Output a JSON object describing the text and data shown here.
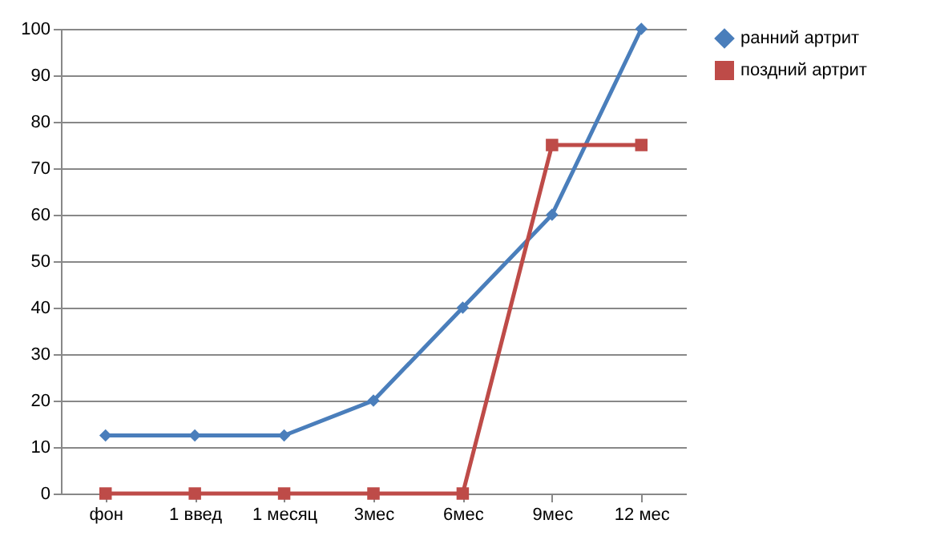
{
  "chart_data": {
    "type": "line",
    "categories": [
      "фон",
      "1 введ",
      "1 месяц",
      "3мес",
      "6мес",
      "9мес",
      "12 мес"
    ],
    "series": [
      {
        "name": "ранний артрит",
        "color": "#4a7ebb",
        "marker": "diamond",
        "values": [
          12.5,
          12.5,
          12.5,
          20,
          40,
          60,
          100
        ]
      },
      {
        "name": "поздний артрит",
        "color": "#be4b48",
        "marker": "square",
        "values": [
          0,
          0,
          0,
          0,
          0,
          75,
          75
        ]
      }
    ],
    "ylim": [
      0,
      100
    ],
    "yticks": [
      0,
      10,
      20,
      30,
      40,
      50,
      60,
      70,
      80,
      90,
      100
    ],
    "grid": "y",
    "legend": "right",
    "line_style": "solid"
  }
}
